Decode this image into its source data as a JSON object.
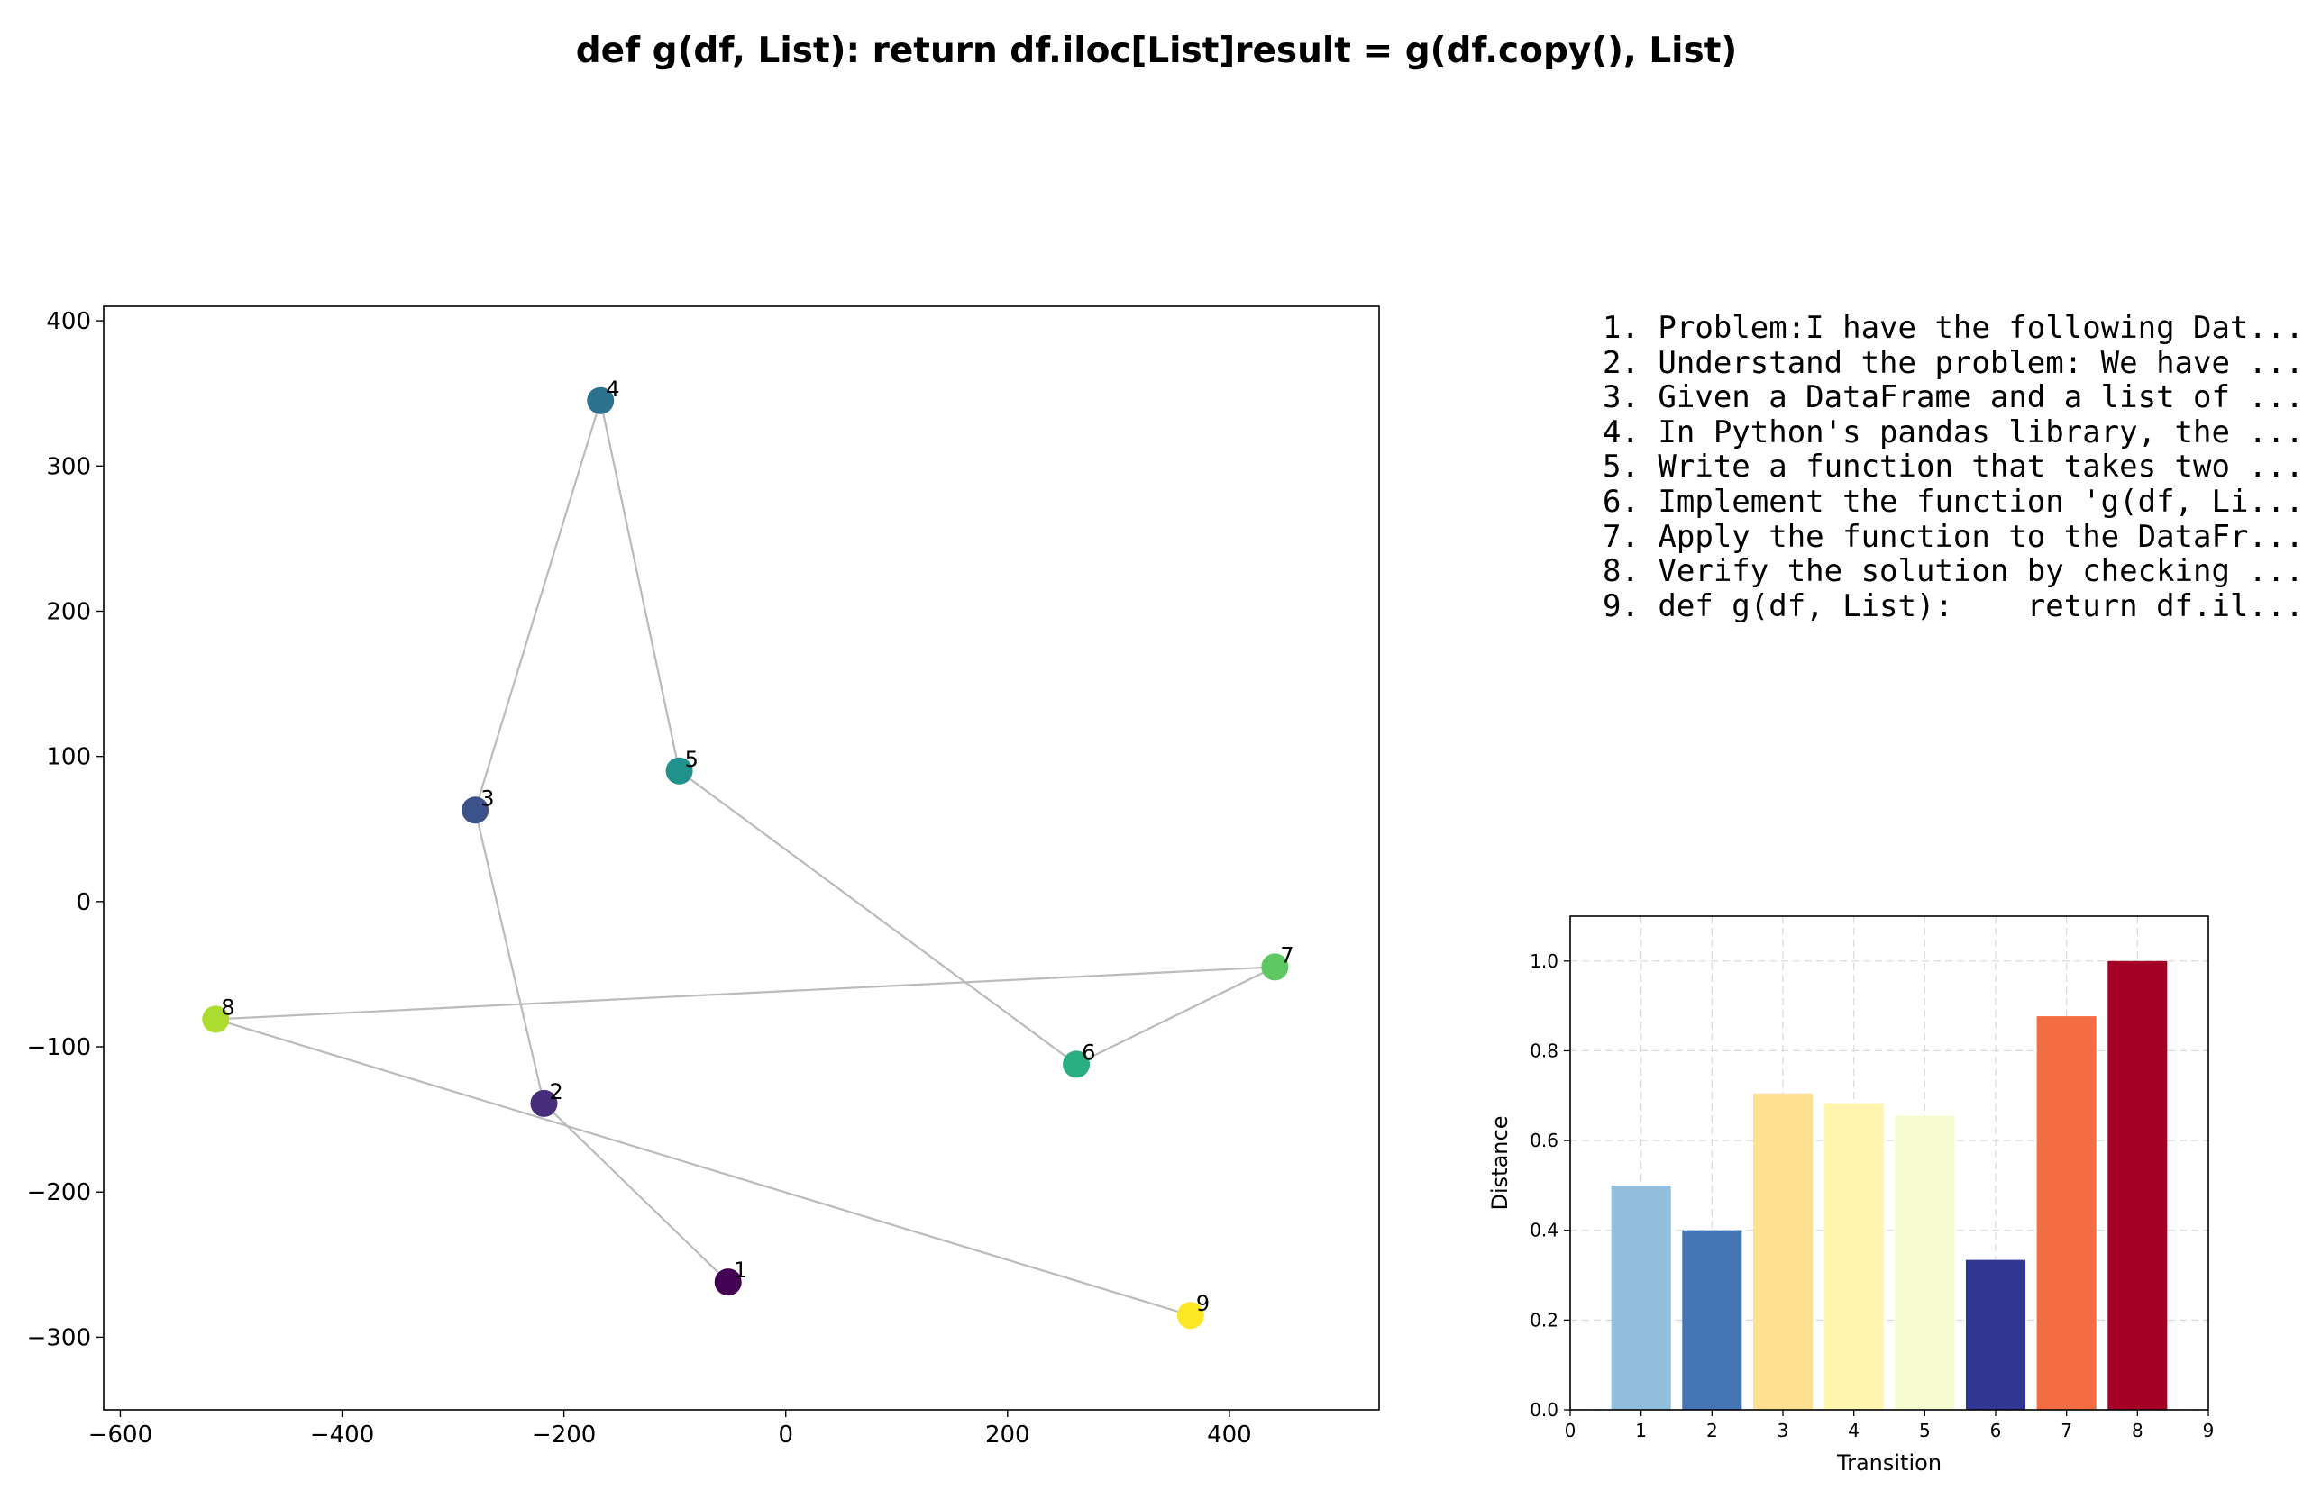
{
  "title": "def g(df, List):    return df.iloc[List]result = g(df.copy(), List)",
  "steps": [
    "1. Problem:I have the following Dat...",
    "2. Understand the problem: We have ...",
    "3. Given a DataFrame and a list of ...",
    "4. In Python's pandas library, the ...",
    "5. Write a function that takes two ...",
    "6. Implement the function 'g(df, Li...",
    "7. Apply the function to the DataFr...",
    "8. Verify the solution by checking ...",
    "9. def g(df, List):    return df.il..."
  ],
  "chart_data": [
    {
      "type": "scatter",
      "title": "",
      "xlabel": "",
      "ylabel": "",
      "xlim": [
        -615,
        535
      ],
      "ylim": [
        -350,
        410
      ],
      "xticks": [
        -600,
        -400,
        -200,
        0,
        200,
        400
      ],
      "xtick_labels": [
        "−600",
        "−400",
        "−200",
        "0",
        "200",
        "400"
      ],
      "yticks": [
        -300,
        -200,
        -100,
        0,
        100,
        200,
        300,
        400
      ],
      "ytick_labels": [
        "−300",
        "−200",
        "−100",
        "0",
        "100",
        "200",
        "300",
        "400"
      ],
      "grid": false,
      "connected": true,
      "line_color": "#bbbbbb",
      "points": [
        {
          "label": "1",
          "x": -52,
          "y": -262,
          "color": "#440154"
        },
        {
          "label": "2",
          "x": -218,
          "y": -139,
          "color": "#472d7b"
        },
        {
          "label": "3",
          "x": -280,
          "y": 63,
          "color": "#3b528b"
        },
        {
          "label": "4",
          "x": -167,
          "y": 345,
          "color": "#2c728e"
        },
        {
          "label": "5",
          "x": -96,
          "y": 90,
          "color": "#21918c"
        },
        {
          "label": "6",
          "x": 262,
          "y": -112,
          "color": "#28ae80"
        },
        {
          "label": "7",
          "x": 441,
          "y": -45,
          "color": "#5ec962"
        },
        {
          "label": "8",
          "x": -514,
          "y": -81,
          "color": "#addc30"
        },
        {
          "label": "9",
          "x": 365,
          "y": -285,
          "color": "#fde725"
        }
      ]
    },
    {
      "type": "bar",
      "title": "",
      "xlabel": "Transition",
      "ylabel": "Distance",
      "xlim": [
        0,
        9
      ],
      "ylim": [
        0,
        1.1
      ],
      "xticks": [
        0,
        1,
        2,
        3,
        4,
        5,
        6,
        7,
        8,
        9
      ],
      "yticks": [
        0.0,
        0.2,
        0.4,
        0.6,
        0.8,
        1.0
      ],
      "ytick_labels": [
        "0.0",
        "0.2",
        "0.4",
        "0.6",
        "0.8",
        "1.0"
      ],
      "grid": true,
      "categories": [
        1,
        2,
        3,
        4,
        5,
        6,
        7,
        8
      ],
      "values": [
        0.5,
        0.4,
        0.705,
        0.683,
        0.655,
        0.334,
        0.877,
        1.0
      ],
      "colors": [
        "#91bfdb",
        "#4575b4",
        "#fee090",
        "#fff5ae",
        "#f7fbd0",
        "#313695",
        "#f46d43",
        "#a50026"
      ]
    }
  ]
}
